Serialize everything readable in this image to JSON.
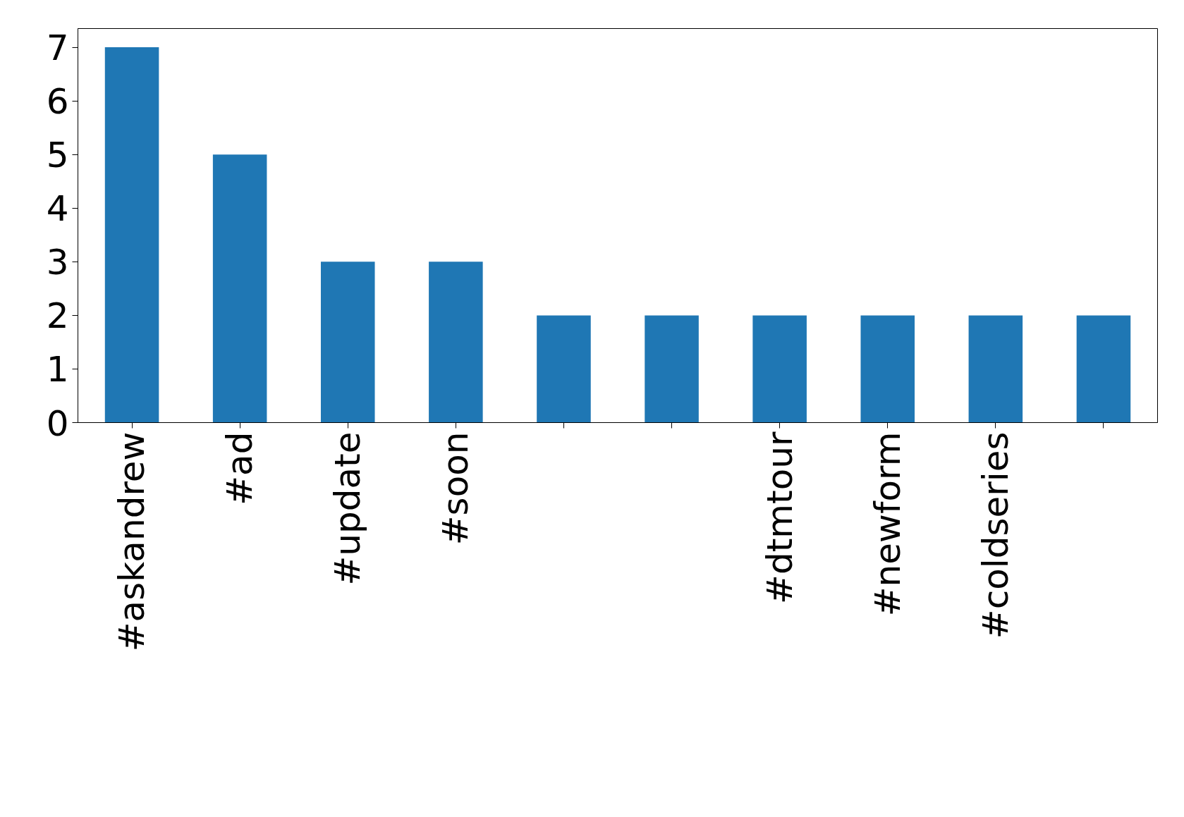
{
  "chart_data": {
    "type": "bar",
    "categories": [
      "#askandrew",
      "#ad",
      "#update",
      "#soon",
      null,
      null,
      "#dtmtour",
      "#newform",
      "#coldseries",
      null
    ],
    "values": [
      7,
      5,
      3,
      3,
      2,
      2,
      2,
      2,
      2,
      2
    ],
    "color": "#1f77b4",
    "ylim": [
      0,
      7.35
    ],
    "yticks": [
      0,
      1,
      2,
      3,
      4,
      5,
      6,
      7
    ],
    "grid": false
  }
}
